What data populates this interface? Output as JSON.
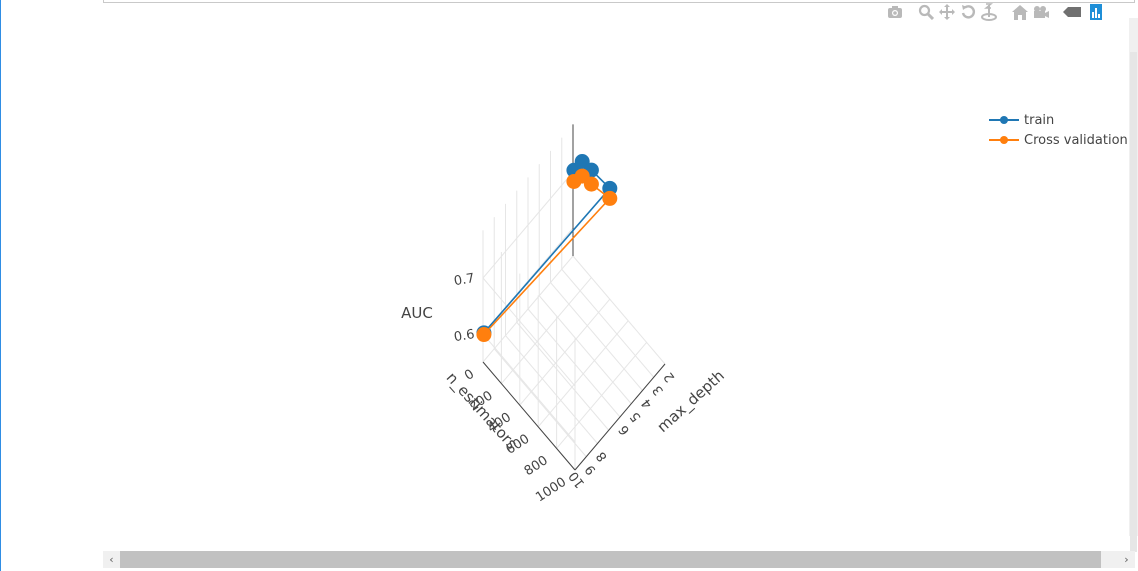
{
  "modebar": {
    "buttons": [
      "camera-icon",
      "zoom-icon",
      "pan-icon",
      "orbit-rotation-icon",
      "turntable-rotation-icon",
      "reset-camera-icon",
      "camera-last-save-icon",
      "hover-toggle-icon",
      "plotly-logo-icon"
    ]
  },
  "chart_data": {
    "type": "scatter3d",
    "x_axis_label": "max_depth",
    "y_axis_label": "n_estimators",
    "z_axis_label": "AUC",
    "x_ticks": [
      "2",
      "3",
      "4",
      "5",
      "6",
      "8",
      "9",
      "10"
    ],
    "y_ticks": [
      "0",
      "200",
      "400",
      "600",
      "800",
      "1000"
    ],
    "z_ticks": [
      "0.6",
      "0.7"
    ],
    "series": [
      {
        "name": "train",
        "color": "#1f77b4",
        "points": [
          {
            "n_estimators": 10,
            "max_depth": 2,
            "AUC": 0.705
          },
          {
            "n_estimators": 100,
            "max_depth": 2,
            "AUC": 0.738
          },
          {
            "n_estimators": 200,
            "max_depth": 2,
            "AUC": 0.742
          },
          {
            "n_estimators": 400,
            "max_depth": 2,
            "AUC": 0.748
          },
          {
            "n_estimators": 10,
            "max_depth": 10,
            "AUC": 0.604
          }
        ]
      },
      {
        "name": "Cross validation",
        "color": "#ff7f0e",
        "points": [
          {
            "n_estimators": 10,
            "max_depth": 2,
            "AUC": 0.685
          },
          {
            "n_estimators": 100,
            "max_depth": 2,
            "AUC": 0.712
          },
          {
            "n_estimators": 200,
            "max_depth": 2,
            "AUC": 0.717
          },
          {
            "n_estimators": 400,
            "max_depth": 2,
            "AUC": 0.73
          },
          {
            "n_estimators": 10,
            "max_depth": 10,
            "AUC": 0.601
          }
        ]
      }
    ]
  }
}
